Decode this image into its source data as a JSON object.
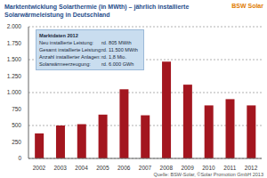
{
  "chart_data": {
    "type": "bar",
    "title": "Marktentwicklung Solarthermie (in MWth) – jährlich installierte Solarwärmeleistung in Deutschland",
    "categories": [
      "2002",
      "2003",
      "2004",
      "2005",
      "2006",
      "2007",
      "2008",
      "2009",
      "2010",
      "2011",
      "2012"
    ],
    "values": [
      380,
      500,
      520,
      665,
      1050,
      655,
      1470,
      1120,
      805,
      900,
      805
    ],
    "color": "#a3161f",
    "ylim": [
      0,
      2000
    ],
    "yticks": [
      0,
      250,
      500,
      750,
      {
        "value": 1000,
        "label": "1.000"
      },
      {
        "value": 1250,
        "label": "1.250"
      },
      {
        "value": 1500,
        "label": "1.500"
      },
      {
        "value": 1750,
        "label": "1.750"
      },
      {
        "value": 2000,
        "label": "2.000"
      }
    ],
    "grid": true,
    "info_box": {
      "title": "Marktdaten 2012",
      "rows": [
        [
          "Neu installierte Leistung:",
          "rd. 805 MWth"
        ],
        [
          "Gesamt installierte Leistung:",
          "rd. 11.500 MWth"
        ],
        [
          "Anzahl installierter Anlagen:",
          "rd. 1,8 Mio."
        ],
        [
          "Solarwärmeerzeugung:",
          "rd. 6.000 GWh"
        ]
      ]
    },
    "source": "Quelle: BSW-Solar, ©Solar Promotion GmbH 2013",
    "logo": "BSW Solar"
  }
}
